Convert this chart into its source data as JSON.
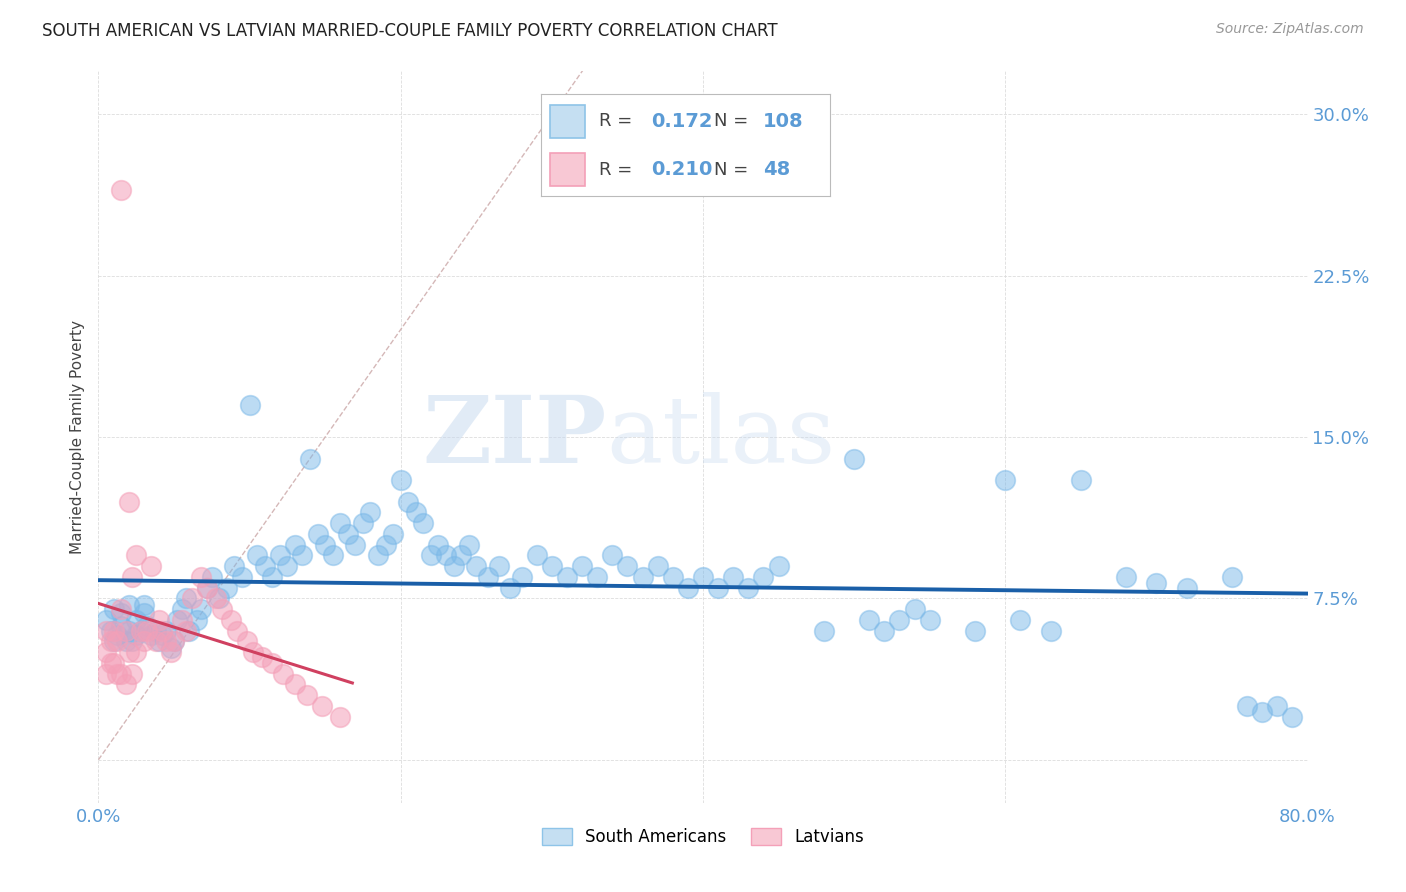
{
  "title": "SOUTH AMERICAN VS LATVIAN MARRIED-COUPLE FAMILY POVERTY CORRELATION CHART",
  "source": "Source: ZipAtlas.com",
  "ylabel": "Married-Couple Family Poverty",
  "xlim": [
    0.0,
    0.8
  ],
  "ylim": [
    -0.02,
    0.32
  ],
  "xtick_vals": [
    0.0,
    0.2,
    0.4,
    0.6,
    0.8
  ],
  "xticklabels": [
    "0.0%",
    "",
    "",
    "",
    "80.0%"
  ],
  "ytick_vals": [
    0.0,
    0.075,
    0.15,
    0.225,
    0.3
  ],
  "yticklabels": [
    "",
    "7.5%",
    "15.0%",
    "22.5%",
    "30.0%"
  ],
  "tick_color": "#5b9bd5",
  "blue_scatter_color": "#7ab8e8",
  "pink_scatter_color": "#f4a0b8",
  "trendline_blue": "#1a5fa8",
  "trendline_pink": "#d04060",
  "diagonal_color": "#d0b0b0",
  "legend_R1": "0.172",
  "legend_N1": "108",
  "legend_R2": "0.210",
  "legend_N2": "48",
  "legend_label1": "South Americans",
  "legend_label2": "Latvians",
  "watermark_zip": "ZIP",
  "watermark_atlas": "atlas",
  "background_color": "#ffffff",
  "grid_color": "#dddddd",
  "blue_x": [
    0.005,
    0.008,
    0.01,
    0.01,
    0.012,
    0.015,
    0.015,
    0.018,
    0.02,
    0.02,
    0.022,
    0.025,
    0.025,
    0.028,
    0.03,
    0.03,
    0.032,
    0.035,
    0.038,
    0.04,
    0.042,
    0.045,
    0.048,
    0.05,
    0.052,
    0.055,
    0.058,
    0.06,
    0.065,
    0.068,
    0.072,
    0.075,
    0.08,
    0.085,
    0.09,
    0.095,
    0.1,
    0.105,
    0.11,
    0.115,
    0.12,
    0.125,
    0.13,
    0.135,
    0.14,
    0.145,
    0.15,
    0.155,
    0.16,
    0.165,
    0.17,
    0.175,
    0.18,
    0.185,
    0.19,
    0.195,
    0.2,
    0.205,
    0.21,
    0.215,
    0.22,
    0.225,
    0.23,
    0.235,
    0.24,
    0.245,
    0.25,
    0.258,
    0.265,
    0.272,
    0.28,
    0.29,
    0.3,
    0.31,
    0.32,
    0.33,
    0.34,
    0.35,
    0.36,
    0.37,
    0.38,
    0.39,
    0.4,
    0.41,
    0.42,
    0.43,
    0.44,
    0.45,
    0.48,
    0.5,
    0.51,
    0.52,
    0.53,
    0.54,
    0.55,
    0.58,
    0.6,
    0.61,
    0.63,
    0.65,
    0.68,
    0.7,
    0.72,
    0.75,
    0.76,
    0.77,
    0.78,
    0.79
  ],
  "blue_y": [
    0.065,
    0.06,
    0.055,
    0.07,
    0.058,
    0.062,
    0.068,
    0.055,
    0.06,
    0.072,
    0.055,
    0.065,
    0.058,
    0.06,
    0.068,
    0.072,
    0.062,
    0.058,
    0.06,
    0.055,
    0.058,
    0.06,
    0.052,
    0.055,
    0.065,
    0.07,
    0.075,
    0.06,
    0.065,
    0.07,
    0.08,
    0.085,
    0.075,
    0.08,
    0.09,
    0.085,
    0.165,
    0.095,
    0.09,
    0.085,
    0.095,
    0.09,
    0.1,
    0.095,
    0.14,
    0.105,
    0.1,
    0.095,
    0.11,
    0.105,
    0.1,
    0.11,
    0.115,
    0.095,
    0.1,
    0.105,
    0.13,
    0.12,
    0.115,
    0.11,
    0.095,
    0.1,
    0.095,
    0.09,
    0.095,
    0.1,
    0.09,
    0.085,
    0.09,
    0.08,
    0.085,
    0.095,
    0.09,
    0.085,
    0.09,
    0.085,
    0.095,
    0.09,
    0.085,
    0.09,
    0.085,
    0.08,
    0.085,
    0.08,
    0.085,
    0.08,
    0.085,
    0.09,
    0.06,
    0.14,
    0.065,
    0.06,
    0.065,
    0.07,
    0.065,
    0.06,
    0.13,
    0.065,
    0.06,
    0.13,
    0.085,
    0.082,
    0.08,
    0.085,
    0.025,
    0.022,
    0.025,
    0.02
  ],
  "pink_x": [
    0.005,
    0.005,
    0.005,
    0.008,
    0.008,
    0.01,
    0.01,
    0.012,
    0.012,
    0.015,
    0.015,
    0.015,
    0.018,
    0.018,
    0.02,
    0.02,
    0.022,
    0.022,
    0.025,
    0.025,
    0.028,
    0.03,
    0.032,
    0.035,
    0.038,
    0.04,
    0.042,
    0.045,
    0.048,
    0.05,
    0.055,
    0.058,
    0.062,
    0.068,
    0.072,
    0.078,
    0.082,
    0.088,
    0.092,
    0.098,
    0.102,
    0.108,
    0.115,
    0.122,
    0.13,
    0.138,
    0.148,
    0.16
  ],
  "pink_y": [
    0.06,
    0.05,
    0.04,
    0.055,
    0.045,
    0.06,
    0.045,
    0.055,
    0.04,
    0.265,
    0.07,
    0.04,
    0.06,
    0.035,
    0.12,
    0.05,
    0.085,
    0.04,
    0.095,
    0.05,
    0.06,
    0.055,
    0.06,
    0.09,
    0.055,
    0.065,
    0.06,
    0.055,
    0.05,
    0.055,
    0.065,
    0.06,
    0.075,
    0.085,
    0.08,
    0.075,
    0.07,
    0.065,
    0.06,
    0.055,
    0.05,
    0.048,
    0.045,
    0.04,
    0.035,
    0.03,
    0.025,
    0.02
  ]
}
